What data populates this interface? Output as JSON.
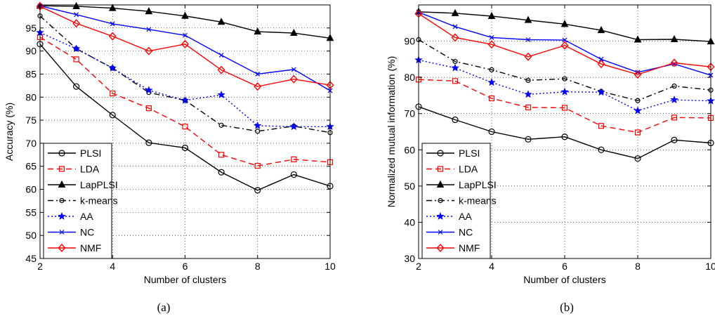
{
  "figure": {
    "panels": [
      {
        "caption": "(a)"
      },
      {
        "caption": "(b)"
      }
    ]
  },
  "styles": {
    "PLSI": {
      "color": "#000000",
      "dash": "",
      "marker": "circle"
    },
    "LDA": {
      "color": "#ff0000",
      "dash": "8,5",
      "marker": "square"
    },
    "LapPLSI": {
      "color": "#000000",
      "dash": "",
      "marker": "triangle"
    },
    "k-means": {
      "color": "#000000",
      "dash": "8,4,2,4",
      "marker": "circle-small"
    },
    "AA": {
      "color": "#0000ff",
      "dash": "2,3",
      "marker": "star"
    },
    "NC": {
      "color": "#0000ff",
      "dash": "",
      "marker": "x"
    },
    "NMF": {
      "color": "#ff0000",
      "dash": "",
      "marker": "diamond"
    }
  },
  "chart_data": [
    {
      "type": "line",
      "xlabel": "Number of clusters",
      "ylabel": "Accuracy (%)",
      "xlim": [
        2,
        10
      ],
      "ylim": [
        45,
        100
      ],
      "xticks": [
        2,
        4,
        6,
        8,
        10
      ],
      "yticks": [
        45,
        50,
        55,
        60,
        65,
        70,
        75,
        80,
        85,
        90,
        95
      ],
      "grid": true,
      "legend_position": "bottom-left",
      "x": [
        2,
        3,
        4,
        5,
        6,
        7,
        8,
        9,
        10
      ],
      "series": [
        {
          "name": "PLSI",
          "values": [
            91.5,
            82.3,
            76.1,
            70.1,
            69.0,
            63.7,
            59.8,
            63.2,
            60.7
          ]
        },
        {
          "name": "LDA",
          "values": [
            93.0,
            88.2,
            80.8,
            77.6,
            73.6,
            67.5,
            65.1,
            66.5,
            65.9
          ]
        },
        {
          "name": "LapPLSI",
          "values": [
            99.8,
            99.7,
            99.3,
            98.6,
            97.6,
            96.3,
            94.2,
            93.9,
            92.8
          ]
        },
        {
          "name": "k-means",
          "values": [
            97.6,
            90.5,
            86.3,
            81.0,
            79.3,
            73.9,
            72.6,
            73.7,
            72.3
          ]
        },
        {
          "name": "AA",
          "values": [
            94.0,
            90.5,
            86.3,
            81.5,
            79.3,
            80.5,
            73.8,
            73.6,
            73.6
          ]
        },
        {
          "name": "NC",
          "values": [
            99.8,
            97.9,
            95.9,
            94.7,
            93.4,
            89.1,
            85.0,
            86.0,
            81.4
          ]
        },
        {
          "name": "NMF",
          "values": [
            99.7,
            96.0,
            93.2,
            90.0,
            91.5,
            85.9,
            82.3,
            83.9,
            82.6
          ]
        }
      ]
    },
    {
      "type": "line",
      "xlabel": "Number of clusters",
      "ylabel": "Normalized mutual information (%)",
      "xlim": [
        2,
        10
      ],
      "ylim": [
        30,
        100
      ],
      "xticks": [
        2,
        4,
        6,
        8,
        10
      ],
      "yticks": [
        30,
        40,
        50,
        60,
        70,
        80,
        90
      ],
      "grid": true,
      "legend_position": "bottom-left",
      "x": [
        2,
        3,
        4,
        5,
        6,
        7,
        8,
        9,
        10
      ],
      "series": [
        {
          "name": "PLSI",
          "values": [
            71.9,
            68.3,
            65.0,
            62.9,
            63.6,
            60.0,
            57.6,
            62.7,
            61.9
          ]
        },
        {
          "name": "LDA",
          "values": [
            79.4,
            79.0,
            74.2,
            71.7,
            71.6,
            66.6,
            64.8,
            68.9,
            68.8
          ]
        },
        {
          "name": "LapPLSI",
          "values": [
            98.1,
            97.7,
            96.9,
            95.8,
            94.7,
            93.0,
            90.4,
            90.5,
            89.9
          ]
        },
        {
          "name": "k-means",
          "values": [
            90.4,
            84.4,
            82.1,
            79.2,
            79.6,
            76.1,
            73.6,
            77.6,
            76.5
          ]
        },
        {
          "name": "AA",
          "values": [
            84.8,
            82.6,
            78.6,
            75.3,
            76.0,
            75.9,
            70.8,
            73.8,
            73.5
          ]
        },
        {
          "name": "NC",
          "values": [
            98.0,
            94.0,
            91.0,
            90.4,
            90.3,
            85.0,
            81.4,
            83.7,
            80.6
          ]
        },
        {
          "name": "NMF",
          "values": [
            97.6,
            91.0,
            89.1,
            85.7,
            88.8,
            83.7,
            80.8,
            84.0,
            82.9
          ]
        }
      ]
    }
  ]
}
